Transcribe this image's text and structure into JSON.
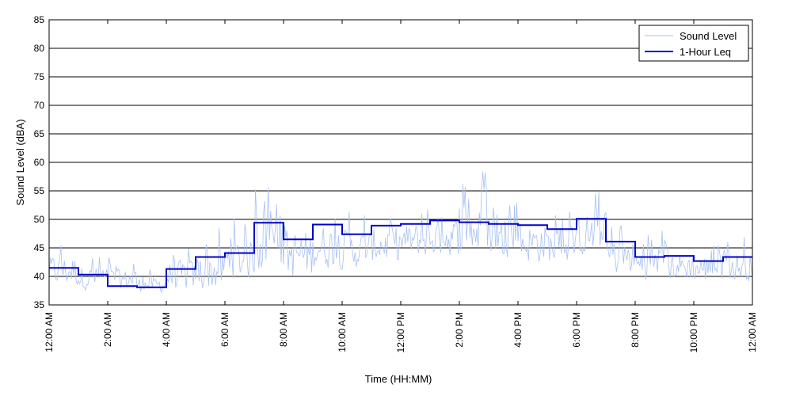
{
  "chart_data": {
    "type": "line",
    "title": "",
    "xlabel": "Time (HH:MM)",
    "ylabel": "Sound Level (dBA)",
    "ylim": [
      35,
      85
    ],
    "yticks": [
      35,
      40,
      45,
      50,
      55,
      60,
      65,
      70,
      75,
      80,
      85
    ],
    "xlim_hours": [
      0,
      24
    ],
    "xticks": [
      {
        "hour": 0,
        "label": "12:00 AM"
      },
      {
        "hour": 2,
        "label": "2:00 AM"
      },
      {
        "hour": 4,
        "label": "4:00 AM"
      },
      {
        "hour": 6,
        "label": "6:00 AM"
      },
      {
        "hour": 8,
        "label": "8:00 AM"
      },
      {
        "hour": 10,
        "label": "10:00 AM"
      },
      {
        "hour": 12,
        "label": "12:00 PM"
      },
      {
        "hour": 14,
        "label": "2:00 PM"
      },
      {
        "hour": 16,
        "label": "4:00 PM"
      },
      {
        "hour": 18,
        "label": "6:00 PM"
      },
      {
        "hour": 20,
        "label": "8:00 PM"
      },
      {
        "hour": 22,
        "label": "10:00 PM"
      },
      {
        "hour": 24,
        "label": "12:00 AM"
      }
    ],
    "grid": "horizontal",
    "legend_position": "top-right",
    "series": [
      {
        "name": "Sound Level",
        "color": "#a7c1f2",
        "style": "thin line",
        "hourly_range": [
          {
            "hour": 0,
            "min": 38,
            "max": 48
          },
          {
            "hour": 1,
            "min": 37.5,
            "max": 45
          },
          {
            "hour": 2,
            "min": 37.5,
            "max": 44
          },
          {
            "hour": 3,
            "min": 37,
            "max": 42
          },
          {
            "hour": 4,
            "min": 37,
            "max": 47
          },
          {
            "hour": 5,
            "min": 37,
            "max": 50
          },
          {
            "hour": 6,
            "min": 39,
            "max": 52
          },
          {
            "hour": 7,
            "min": 40,
            "max": 59
          },
          {
            "hour": 8,
            "min": 39,
            "max": 55
          },
          {
            "hour": 9,
            "min": 41,
            "max": 55
          },
          {
            "hour": 10,
            "min": 41,
            "max": 53
          },
          {
            "hour": 11,
            "min": 42,
            "max": 54
          },
          {
            "hour": 12,
            "min": 43,
            "max": 54
          },
          {
            "hour": 13,
            "min": 43,
            "max": 56
          },
          {
            "hour": 14,
            "min": 43,
            "max": 59.5
          },
          {
            "hour": 15,
            "min": 43,
            "max": 55
          },
          {
            "hour": 16,
            "min": 42,
            "max": 55
          },
          {
            "hour": 17,
            "min": 42,
            "max": 53
          },
          {
            "hour": 18,
            "min": 43,
            "max": 57
          },
          {
            "hour": 19,
            "min": 40,
            "max": 51
          },
          {
            "hour": 20,
            "min": 39,
            "max": 49
          },
          {
            "hour": 21,
            "min": 39,
            "max": 48
          },
          {
            "hour": 22,
            "min": 38.5,
            "max": 48
          },
          {
            "hour": 23,
            "min": 39,
            "max": 48
          }
        ]
      },
      {
        "name": "1-Hour Leq",
        "color": "#0000cc",
        "style": "step",
        "hours": [
          0,
          1,
          2,
          3,
          4,
          5,
          6,
          7,
          8,
          9,
          10,
          11,
          12,
          13,
          14,
          15,
          16,
          17,
          18,
          19,
          20,
          21,
          22,
          23
        ],
        "values": [
          41.5,
          40.3,
          38.3,
          38.1,
          41.3,
          43.4,
          44.1,
          49.4,
          46.5,
          49.1,
          47.4,
          48.9,
          49.2,
          49.8,
          49.5,
          49.2,
          49.0,
          48.3,
          50.1,
          46.1,
          43.4,
          43.6,
          42.7,
          43.4
        ]
      }
    ]
  }
}
